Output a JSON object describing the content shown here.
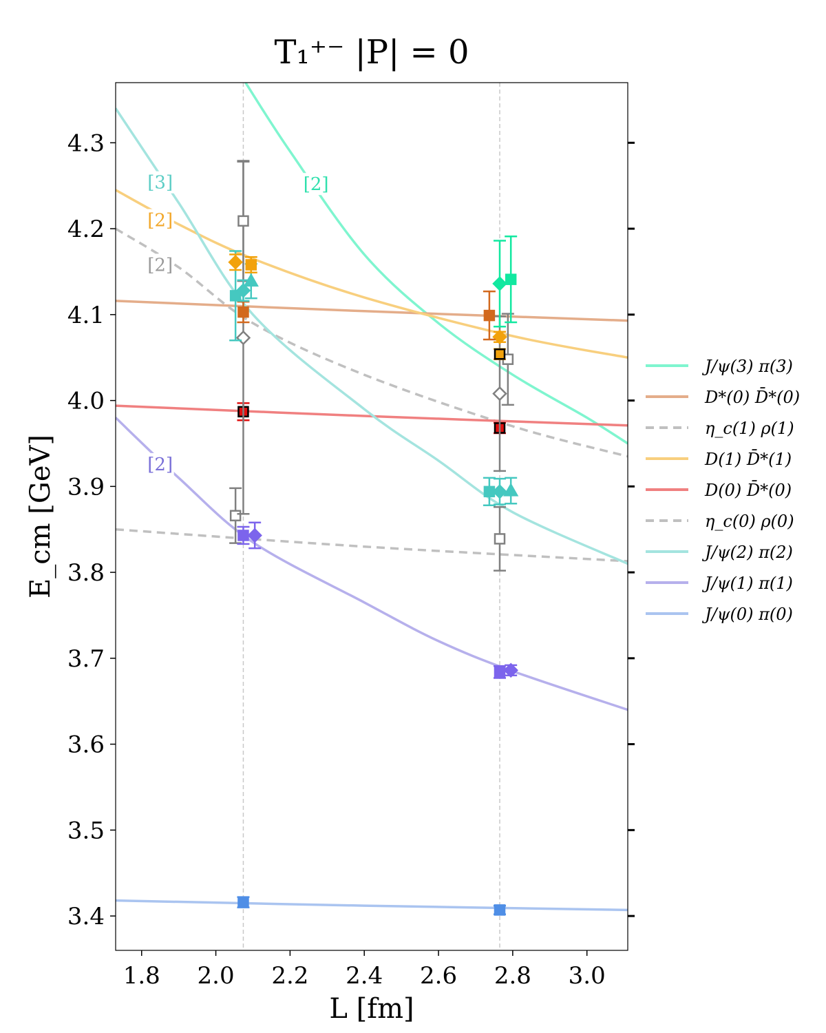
{
  "chart_data": {
    "type": "scatter",
    "title": "T₁⁺⁻ |P| = 0",
    "xlabel": "L [fm]",
    "ylabel": "E_cm [GeV]",
    "xlim": [
      1.73,
      3.11
    ],
    "ylim": [
      3.36,
      4.37
    ],
    "x_ticks": [
      1.8,
      2.0,
      2.2,
      2.4,
      2.6,
      2.8,
      3.0
    ],
    "y_ticks": [
      3.4,
      3.5,
      3.6,
      3.7,
      3.8,
      3.9,
      4.0,
      4.1,
      4.2,
      4.3
    ],
    "x_tick_labels": [
      "1.8",
      "2.0",
      "2.2",
      "2.4",
      "2.6",
      "2.8",
      "3.0"
    ],
    "y_tick_labels": [
      "3.4",
      "3.5",
      "3.6",
      "3.7",
      "3.8",
      "3.9",
      "4.0",
      "4.1",
      "4.2",
      "4.3"
    ],
    "grid": false,
    "legend_placement": "right",
    "reference_lines_x": [
      2.074,
      2.765
    ],
    "curves": [
      {
        "name": "J/ψ(3) π(3)",
        "color": "#7ff5cf",
        "dash": false,
        "points": [
          [
            2.08,
            4.37
          ],
          [
            2.2,
            4.29
          ],
          [
            2.4,
            4.17
          ],
          [
            2.6,
            4.09
          ],
          [
            2.8,
            4.03
          ],
          [
            3.0,
            3.98
          ],
          [
            3.11,
            3.95
          ]
        ]
      },
      {
        "name": "D*(0) D̄*(0)",
        "color": "#e4ad8a",
        "dash": false,
        "points": [
          [
            1.73,
            4.116
          ],
          [
            2.4,
            4.104
          ],
          [
            3.11,
            4.093
          ]
        ]
      },
      {
        "name": "η_c(1) ρ(1)",
        "color": "#c0c0c0",
        "dash": true,
        "points": [
          [
            1.73,
            4.2
          ],
          [
            1.9,
            4.155
          ],
          [
            2.1,
            4.09
          ],
          [
            2.4,
            4.03
          ],
          [
            2.8,
            3.97
          ],
          [
            3.11,
            3.935
          ]
        ]
      },
      {
        "name": "D(1) D̄*(1)",
        "color": "#f8cf7e",
        "dash": false,
        "points": [
          [
            1.73,
            4.245
          ],
          [
            1.9,
            4.205
          ],
          [
            2.1,
            4.165
          ],
          [
            2.4,
            4.12
          ],
          [
            2.8,
            4.075
          ],
          [
            3.11,
            4.05
          ]
        ]
      },
      {
        "name": "D(0) D̄*(0)",
        "color": "#f08080",
        "dash": false,
        "points": [
          [
            1.73,
            3.994
          ],
          [
            2.4,
            3.982
          ],
          [
            3.11,
            3.971
          ]
        ]
      },
      {
        "name": "η_c(0) ρ(0)",
        "color": "#c0c0c0",
        "dash": true,
        "points": [
          [
            1.73,
            3.85
          ],
          [
            2.4,
            3.83
          ],
          [
            3.11,
            3.813
          ]
        ]
      },
      {
        "name": "J/ψ(2) π(2)",
        "color": "#a4e4df",
        "dash": false,
        "points": [
          [
            1.73,
            4.34
          ],
          [
            1.9,
            4.23
          ],
          [
            2.1,
            4.1
          ],
          [
            2.4,
            3.99
          ],
          [
            2.6,
            3.93
          ],
          [
            2.8,
            3.87
          ],
          [
            3.11,
            3.81
          ]
        ]
      },
      {
        "name": "J/ψ(1) π(1)",
        "color": "#b6b0ec",
        "dash": false,
        "points": [
          [
            1.73,
            3.98
          ],
          [
            1.9,
            3.91
          ],
          [
            2.1,
            3.835
          ],
          [
            2.4,
            3.765
          ],
          [
            2.6,
            3.72
          ],
          [
            2.8,
            3.685
          ],
          [
            3.11,
            3.64
          ]
        ]
      },
      {
        "name": "J/ψ(0) π(0)",
        "color": "#aac4f0",
        "dash": false,
        "points": [
          [
            1.73,
            3.418
          ],
          [
            2.4,
            3.412
          ],
          [
            3.11,
            3.407
          ]
        ]
      }
    ],
    "curve_tags": [
      {
        "text": "[3]",
        "x": 1.85,
        "y": 4.254,
        "color": "#5ccdc5"
      },
      {
        "text": "[2]",
        "x": 1.85,
        "y": 4.21,
        "color": "#f2a72a"
      },
      {
        "text": "[2]",
        "x": 1.85,
        "y": 4.158,
        "color": "#9a9a9a"
      },
      {
        "text": "[2]",
        "x": 2.27,
        "y": 4.252,
        "color": "#2fe0ad"
      },
      {
        "text": "[2]",
        "x": 1.85,
        "y": 3.926,
        "color": "#7a70d8"
      }
    ],
    "points": [
      {
        "x": 2.074,
        "y": 3.416,
        "err": 0.006,
        "marker": "square",
        "color": "#4f8ee6",
        "filled": true
      },
      {
        "x": 2.053,
        "y": 3.866,
        "err": 0.032,
        "marker": "square",
        "color": "#808080",
        "filled": false
      },
      {
        "x": 2.074,
        "y": 3.843,
        "err": 0.01,
        "marker": "square",
        "color": "#7c64ec",
        "filled": true
      },
      {
        "x": 2.105,
        "y": 3.843,
        "err": 0.015,
        "marker": "diamond",
        "color": "#7c64ec",
        "filled": true
      },
      {
        "x": 2.074,
        "y": 3.987,
        "err": 0.01,
        "marker": "square",
        "color": "#e01010",
        "filled": true,
        "edge": "#000000"
      },
      {
        "x": 2.074,
        "y": 4.073,
        "err": 0.205,
        "marker": "diamond",
        "color": "#808080",
        "filled": false
      },
      {
        "x": 2.074,
        "y": 4.209,
        "err": 0.07,
        "marker": "square",
        "color": "#808080",
        "filled": false
      },
      {
        "x": 2.074,
        "y": 4.103,
        "err": 0.012,
        "marker": "square",
        "color": "#d2691e",
        "filled": true
      },
      {
        "x": 2.053,
        "y": 4.122,
        "err": 0.052,
        "marker": "square",
        "color": "#45c8c0",
        "filled": true
      },
      {
        "x": 2.074,
        "y": 4.128,
        "err": 0.012,
        "marker": "diamond",
        "color": "#45c8c0",
        "filled": true
      },
      {
        "x": 2.095,
        "y": 4.139,
        "err": 0.02,
        "marker": "triangle",
        "color": "#45c8c0",
        "filled": true
      },
      {
        "x": 2.053,
        "y": 4.161,
        "err": 0.009,
        "marker": "diamond",
        "color": "#f2a20c",
        "filled": true
      },
      {
        "x": 2.095,
        "y": 4.158,
        "err": 0.009,
        "marker": "square",
        "color": "#f2a20c",
        "filled": true
      },
      {
        "x": 2.765,
        "y": 3.407,
        "err": 0.005,
        "marker": "square",
        "color": "#4f8ee6",
        "filled": true
      },
      {
        "x": 2.765,
        "y": 3.684,
        "err": 0.007,
        "marker": "square",
        "color": "#7c64ec",
        "filled": true
      },
      {
        "x": 2.795,
        "y": 3.686,
        "err": 0.006,
        "marker": "diamond",
        "color": "#7c64ec",
        "filled": true
      },
      {
        "x": 2.765,
        "y": 3.839,
        "err": 0.037,
        "marker": "square",
        "color": "#808080",
        "filled": false
      },
      {
        "x": 2.737,
        "y": 3.894,
        "err": 0.016,
        "marker": "square",
        "color": "#45c8c0",
        "filled": true
      },
      {
        "x": 2.765,
        "y": 3.894,
        "err": 0.015,
        "marker": "diamond",
        "color": "#45c8c0",
        "filled": true
      },
      {
        "x": 2.795,
        "y": 3.895,
        "err": 0.015,
        "marker": "triangle",
        "color": "#45c8c0",
        "filled": true
      },
      {
        "x": 2.765,
        "y": 3.968,
        "err": 0.006,
        "marker": "square",
        "color": "#e01010",
        "filled": true,
        "edge": "#000000"
      },
      {
        "x": 2.765,
        "y": 4.008,
        "err": 0.09,
        "marker": "diamond",
        "color": "#808080",
        "filled": false
      },
      {
        "x": 2.787,
        "y": 4.048,
        "err": 0.053,
        "marker": "square",
        "color": "#808080",
        "filled": false
      },
      {
        "x": 2.765,
        "y": 4.054,
        "err": 0.006,
        "marker": "square",
        "color": "#f2a20c",
        "filled": true,
        "edge": "#000000"
      },
      {
        "x": 2.765,
        "y": 4.074,
        "err": 0.006,
        "marker": "diamond",
        "color": "#f2a20c",
        "filled": true
      },
      {
        "x": 2.737,
        "y": 4.099,
        "err": 0.028,
        "marker": "square",
        "color": "#d2691e",
        "filled": true
      },
      {
        "x": 2.765,
        "y": 4.136,
        "err": 0.05,
        "marker": "diamond",
        "color": "#12e8a0",
        "filled": true
      },
      {
        "x": 2.795,
        "y": 4.141,
        "err": 0.05,
        "marker": "square",
        "color": "#12e8a0",
        "filled": true
      }
    ]
  }
}
